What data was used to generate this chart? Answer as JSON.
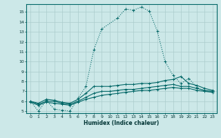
{
  "xlabel": "Humidex (Indice chaleur)",
  "ylabel": "",
  "background_color": "#cce8e8",
  "grid_color": "#aacccc",
  "line_color": "#006666",
  "xlim": [
    -0.5,
    23.5
  ],
  "ylim": [
    4.8,
    15.8
  ],
  "yticks": [
    5,
    6,
    7,
    8,
    9,
    10,
    11,
    12,
    13,
    14,
    15
  ],
  "xticks": [
    0,
    1,
    2,
    3,
    4,
    5,
    6,
    7,
    8,
    9,
    10,
    11,
    12,
    13,
    14,
    15,
    16,
    17,
    18,
    19,
    20,
    21,
    22,
    23
  ],
  "lines": [
    {
      "x": [
        0,
        1,
        2,
        3,
        4,
        5,
        6,
        7,
        8,
        9,
        11,
        12,
        13,
        14,
        15,
        16,
        17,
        18,
        19,
        20,
        21,
        22,
        23
      ],
      "y": [
        6.0,
        5.0,
        6.1,
        5.2,
        5.1,
        5.0,
        6.3,
        7.5,
        11.2,
        13.3,
        14.4,
        15.3,
        15.2,
        15.5,
        15.1,
        13.1,
        10.0,
        8.6,
        7.8,
        8.3,
        7.4,
        7.0,
        7.0
      ],
      "style": "dotted"
    },
    {
      "x": [
        0,
        1,
        2,
        3,
        4,
        5,
        6,
        7,
        8,
        9,
        10,
        11,
        12,
        13,
        14,
        15,
        16,
        17,
        18,
        19,
        20,
        21,
        22,
        23
      ],
      "y": [
        6.0,
        5.8,
        6.2,
        6.1,
        5.9,
        5.8,
        6.2,
        6.8,
        7.5,
        7.5,
        7.5,
        7.6,
        7.7,
        7.7,
        7.8,
        7.8,
        7.9,
        8.1,
        8.2,
        8.5,
        7.8,
        7.6,
        7.3,
        7.1
      ],
      "style": "solid"
    },
    {
      "x": [
        0,
        1,
        2,
        3,
        4,
        5,
        6,
        7,
        8,
        9,
        10,
        11,
        12,
        13,
        14,
        15,
        16,
        17,
        18,
        19,
        20,
        21,
        22,
        23
      ],
      "y": [
        6.0,
        5.7,
        6.0,
        6.0,
        5.8,
        5.7,
        6.0,
        6.4,
        6.8,
        7.0,
        7.0,
        7.1,
        7.2,
        7.2,
        7.3,
        7.4,
        7.5,
        7.6,
        7.7,
        7.5,
        7.5,
        7.3,
        7.1,
        7.0
      ],
      "style": "solid"
    },
    {
      "x": [
        0,
        1,
        2,
        3,
        4,
        5,
        6,
        7,
        8,
        9,
        10,
        11,
        12,
        13,
        14,
        15,
        16,
        17,
        18,
        19,
        20,
        21,
        22,
        23
      ],
      "y": [
        5.9,
        5.6,
        5.9,
        5.8,
        5.7,
        5.6,
        5.9,
        6.2,
        6.4,
        6.6,
        6.7,
        6.8,
        6.9,
        7.0,
        7.1,
        7.1,
        7.2,
        7.3,
        7.4,
        7.3,
        7.3,
        7.1,
        7.0,
        6.9
      ],
      "style": "solid"
    }
  ]
}
